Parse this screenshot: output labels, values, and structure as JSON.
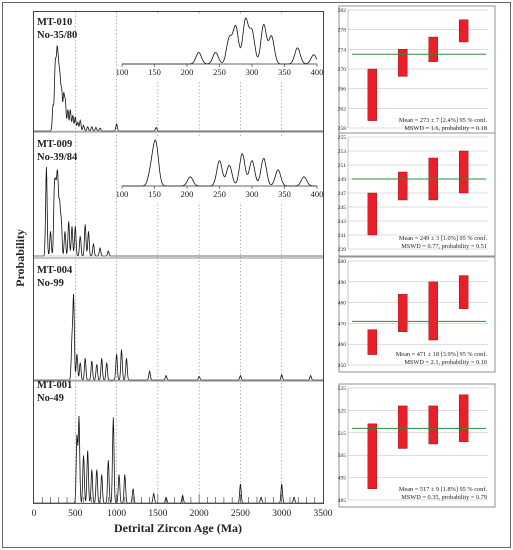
{
  "chart_data": [
    {
      "type": "line",
      "title": "",
      "xlabel": "Detrital Zircon Age (Ma)",
      "ylabel": "Probability",
      "xlim": [
        0,
        3500
      ],
      "x_ticks": [
        "0",
        "500",
        "1000",
        "1500",
        "2000",
        "2500",
        "3000",
        "3500"
      ],
      "panels": [
        {
          "name": "MT-010",
          "sample_code": "No-35/80",
          "peaks": [
            [
              230,
              0.35
            ],
            [
              255,
              0.75
            ],
            [
              268,
              0.5
            ],
            [
              282,
              0.9
            ],
            [
              298,
              0.7
            ],
            [
              315,
              0.65
            ],
            [
              335,
              0.55
            ],
            [
              360,
              0.5
            ],
            [
              380,
              0.4
            ],
            [
              410,
              0.3
            ],
            [
              440,
              0.3
            ],
            [
              470,
              0.22
            ],
            [
              500,
              0.2
            ],
            [
              530,
              0.12
            ],
            [
              560,
              0.15
            ],
            [
              600,
              0.08
            ],
            [
              650,
              0.06
            ],
            [
              700,
              0.06
            ],
            [
              750,
              0.05
            ],
            [
              800,
              0.04
            ],
            [
              1000,
              0.1
            ],
            [
              1480,
              0.05
            ]
          ],
          "inset": {
            "xlim": [
              100,
              400
            ],
            "x_ticks": [
              "100",
              "150",
              "200",
              "250",
              "300",
              "350",
              "400"
            ],
            "peaks": [
              [
                218,
                0.25
              ],
              [
                244,
                0.25
              ],
              [
                265,
                0.55
              ],
              [
                275,
                0.8
              ],
              [
                290,
                0.95
              ],
              [
                300,
                0.7
              ],
              [
                318,
                0.85
              ],
              [
                330,
                0.6
              ],
              [
                370,
                0.35
              ],
              [
                395,
                0.2
              ]
            ]
          }
        },
        {
          "name": "MT-009",
          "sample_code": "No-39/84",
          "peaks": [
            [
              150,
              0.9
            ],
            [
              200,
              0.25
            ],
            [
              246,
              0.6
            ],
            [
              262,
              0.55
            ],
            [
              278,
              0.5
            ],
            [
              290,
              0.55
            ],
            [
              310,
              0.5
            ],
            [
              330,
              0.35
            ],
            [
              375,
              0.25
            ],
            [
              420,
              0.35
            ],
            [
              460,
              0.3
            ],
            [
              500,
              0.3
            ],
            [
              560,
              0.2
            ],
            [
              620,
              0.32
            ],
            [
              660,
              0.25
            ],
            [
              720,
              0.12
            ],
            [
              800,
              0.08
            ],
            [
              900,
              0.05
            ]
          ],
          "inset": {
            "xlim": [
              100,
              400
            ],
            "x_ticks": [
              "100",
              "150",
              "200",
              "250",
              "300",
              "350",
              "400"
            ],
            "peaks": [
              [
                145,
                0.35
              ],
              [
                152,
                0.9
              ],
              [
                205,
                0.2
              ],
              [
                250,
                0.55
              ],
              [
                265,
                0.45
              ],
              [
                285,
                0.7
              ],
              [
                300,
                0.55
              ],
              [
                318,
                0.6
              ],
              [
                340,
                0.35
              ],
              [
                380,
                0.2
              ]
            ]
          }
        },
        {
          "name": "MT-004",
          "sample_code": "No-99",
          "peaks": [
            [
              460,
              0.45
            ],
            [
              480,
              0.95
            ],
            [
              520,
              0.3
            ],
            [
              560,
              0.2
            ],
            [
              620,
              0.25
            ],
            [
              700,
              0.22
            ],
            [
              760,
              0.18
            ],
            [
              820,
              0.25
            ],
            [
              880,
              0.2
            ],
            [
              1000,
              0.3
            ],
            [
              1060,
              0.35
            ],
            [
              1120,
              0.25
            ],
            [
              1400,
              0.1
            ],
            [
              1600,
              0.05
            ],
            [
              2000,
              0.04
            ],
            [
              2500,
              0.05
            ],
            [
              3000,
              0.06
            ],
            [
              3350,
              0.05
            ]
          ]
        },
        {
          "name": "MT-001",
          "sample_code": "No-49",
          "peaks": [
            [
              520,
              0.7
            ],
            [
              545,
              0.9
            ],
            [
              600,
              0.5
            ],
            [
              650,
              0.55
            ],
            [
              700,
              0.35
            ],
            [
              760,
              0.35
            ],
            [
              820,
              0.3
            ],
            [
              900,
              0.45
            ],
            [
              960,
              0.9
            ],
            [
              1030,
              0.3
            ],
            [
              1100,
              0.3
            ],
            [
              1200,
              0.15
            ],
            [
              1450,
              0.1
            ],
            [
              1600,
              0.06
            ],
            [
              1800,
              0.08
            ],
            [
              2500,
              0.2
            ],
            [
              2750,
              0.06
            ],
            [
              3000,
              0.2
            ],
            [
              3150,
              0.06
            ]
          ]
        }
      ]
    },
    {
      "type": "scatter",
      "name": "MT-010 weighted mean",
      "ylim": [
        258,
        282
      ],
      "y_ticks": [
        "258",
        "262",
        "266",
        "270",
        "274",
        "278",
        "282"
      ],
      "mean": 273,
      "bars": [
        [
          259.5,
          270
        ],
        [
          268.5,
          274
        ],
        [
          271.5,
          276.5
        ],
        [
          275.5,
          280
        ]
      ],
      "text_line1": "Mean = 273 ± 7 [2.4%] 95 % conf.",
      "text_line2": "MSWD = 1.6, probability = 0.18"
    },
    {
      "type": "scatter",
      "name": "MT-009 weighted mean",
      "ylim": [
        239,
        255
      ],
      "y_ticks": [
        "239",
        "241",
        "243",
        "245",
        "247",
        "249",
        "251",
        "253",
        "255"
      ],
      "mean": 249,
      "bars": [
        [
          241,
          247
        ],
        [
          246,
          250
        ],
        [
          246,
          252
        ],
        [
          247,
          253
        ]
      ],
      "text_line1": "Mean = 249 ± 3 [1.0%] 95 % conf.",
      "text_line2": "MSWD = 0.77, probability = 0.51"
    },
    {
      "type": "scatter",
      "name": "MT-004 weighted mean",
      "ylim": [
        450,
        500
      ],
      "y_ticks": [
        "450",
        "460",
        "470",
        "480",
        "490",
        "500"
      ],
      "mean": 471,
      "bars": [
        [
          455,
          467
        ],
        [
          466,
          484
        ],
        [
          462,
          490
        ],
        [
          477,
          493
        ]
      ],
      "text_line1": "Mean = 471 ± 18 [3.9%] 95 % conf.",
      "text_line2": "MSWD = 2.1, probability = 0.10"
    },
    {
      "type": "scatter",
      "name": "MT-001 weighted mean",
      "ylim": [
        485,
        535
      ],
      "y_ticks": [
        "485",
        "495",
        "505",
        "515",
        "525",
        "535"
      ],
      "mean": 517,
      "bars": [
        [
          490,
          519
        ],
        [
          508,
          527
        ],
        [
          510,
          527
        ],
        [
          511,
          532
        ]
      ],
      "text_line1": "Mean = 517 ± 9 [1.8%] 95 % conf.",
      "text_line2": "MSWD = 0.35, probability = 0.79"
    }
  ],
  "colors": {
    "curve": "#111111",
    "mean_line": "#2e8b3a",
    "bar_fill": "#e8202a",
    "bar_edge": "#8b0000",
    "grid": "#bbbbbb",
    "dotted": "#888888"
  }
}
